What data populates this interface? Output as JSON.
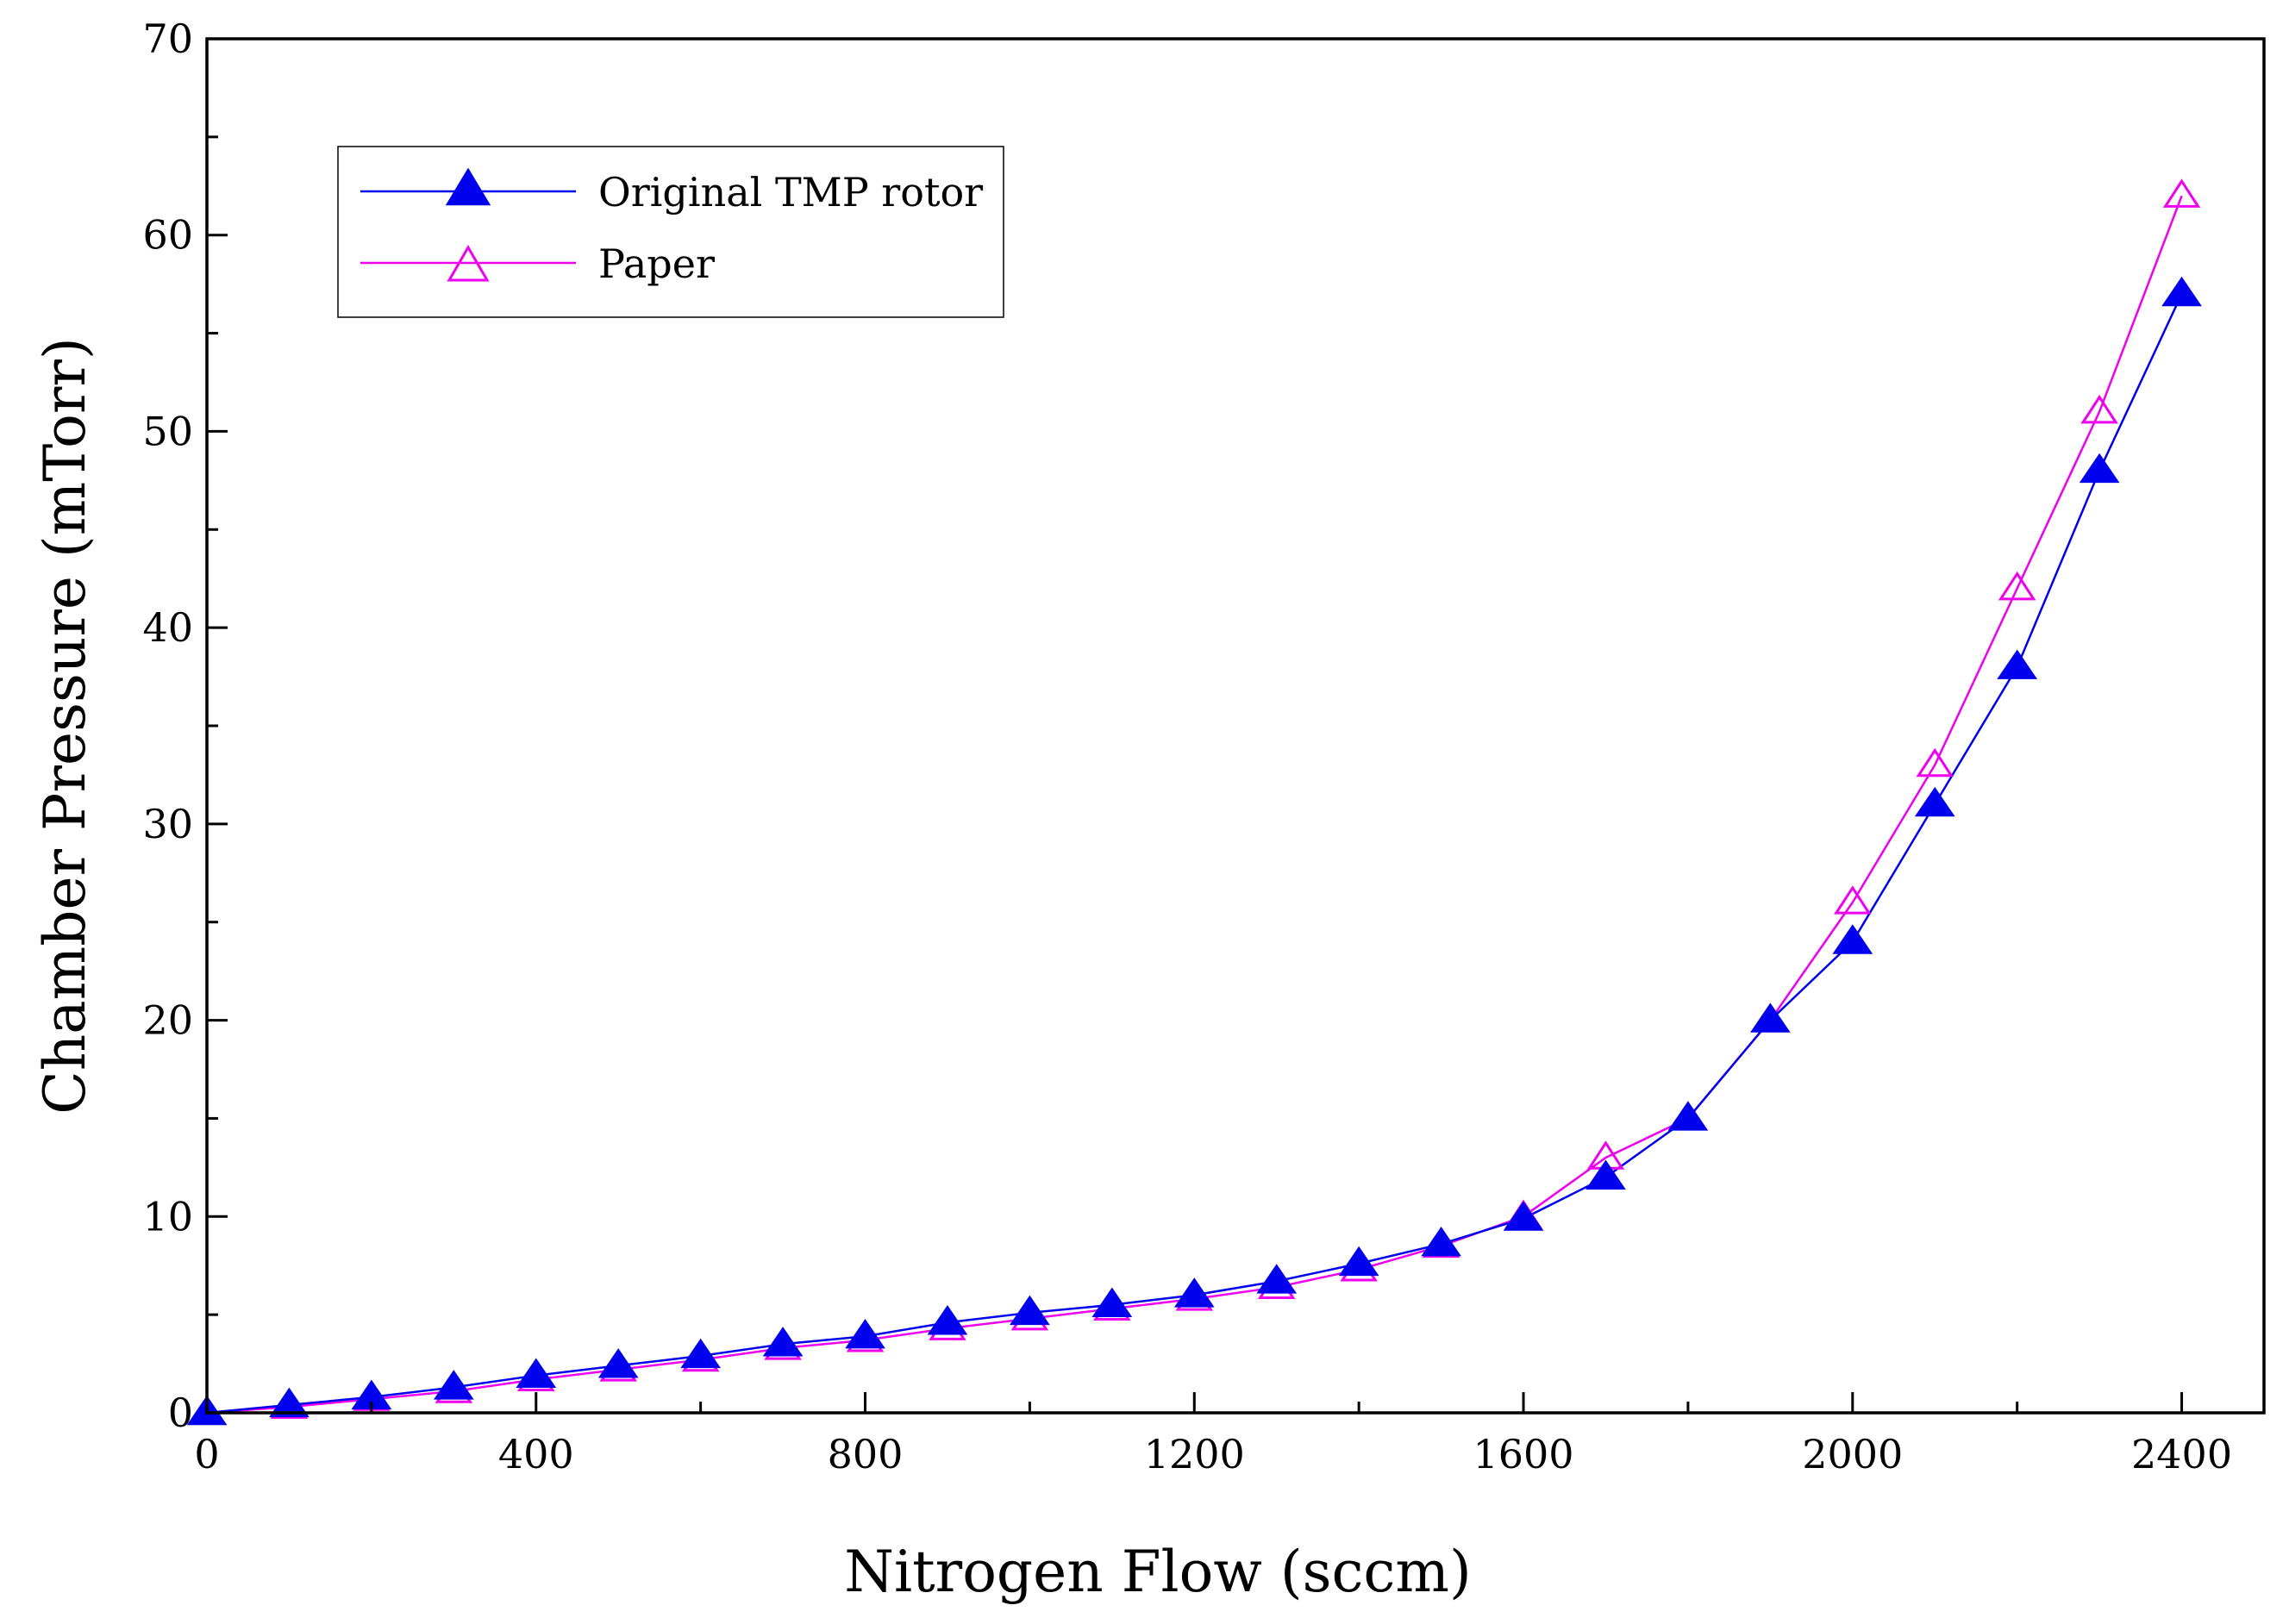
{
  "chart_data": {
    "type": "line",
    "title": "",
    "xlabel": "Nitrogen Flow (sccm)",
    "ylabel": "Chamber Pressure (mTorr)",
    "xlim": [
      0,
      2500
    ],
    "ylim": [
      0,
      70
    ],
    "xticks": [
      0,
      400,
      800,
      1200,
      1600,
      2000,
      2400
    ],
    "xtick_labels": [
      "0",
      "400",
      "800",
      "1200",
      "1600",
      "2000",
      "2400"
    ],
    "yticks": [
      0,
      10,
      20,
      30,
      40,
      50,
      60,
      70
    ],
    "ytick_labels": [
      "0",
      "10",
      "20",
      "30",
      "40",
      "50",
      "60",
      "70"
    ],
    "legend_position": "top-left",
    "x": [
      0,
      100,
      200,
      300,
      400,
      500,
      600,
      700,
      800,
      900,
      1000,
      1100,
      1200,
      1300,
      1400,
      1500,
      1600,
      1700,
      1800,
      1900,
      2000,
      2100,
      2200,
      2300,
      2400
    ],
    "series": [
      {
        "name": "Original TMP rotor",
        "color": "#0000ee",
        "marker": "filled-triangle",
        "values": [
          0.0,
          0.4,
          0.8,
          1.3,
          1.9,
          2.4,
          2.9,
          3.5,
          3.9,
          4.6,
          5.1,
          5.5,
          6.0,
          6.7,
          7.6,
          8.6,
          9.9,
          12.0,
          15.0,
          20.0,
          24.0,
          31.0,
          38.0,
          48.0,
          57.0
        ]
      },
      {
        "name": "Paper",
        "color": "#ee00ee",
        "marker": "open-triangle",
        "values": [
          0.0,
          0.3,
          0.7,
          1.1,
          1.7,
          2.2,
          2.7,
          3.3,
          3.7,
          4.3,
          4.8,
          5.3,
          5.8,
          6.4,
          7.3,
          8.5,
          10.0,
          13.0,
          15.0,
          20.0,
          26.0,
          33.0,
          42.0,
          51.0,
          62.0
        ]
      }
    ]
  }
}
